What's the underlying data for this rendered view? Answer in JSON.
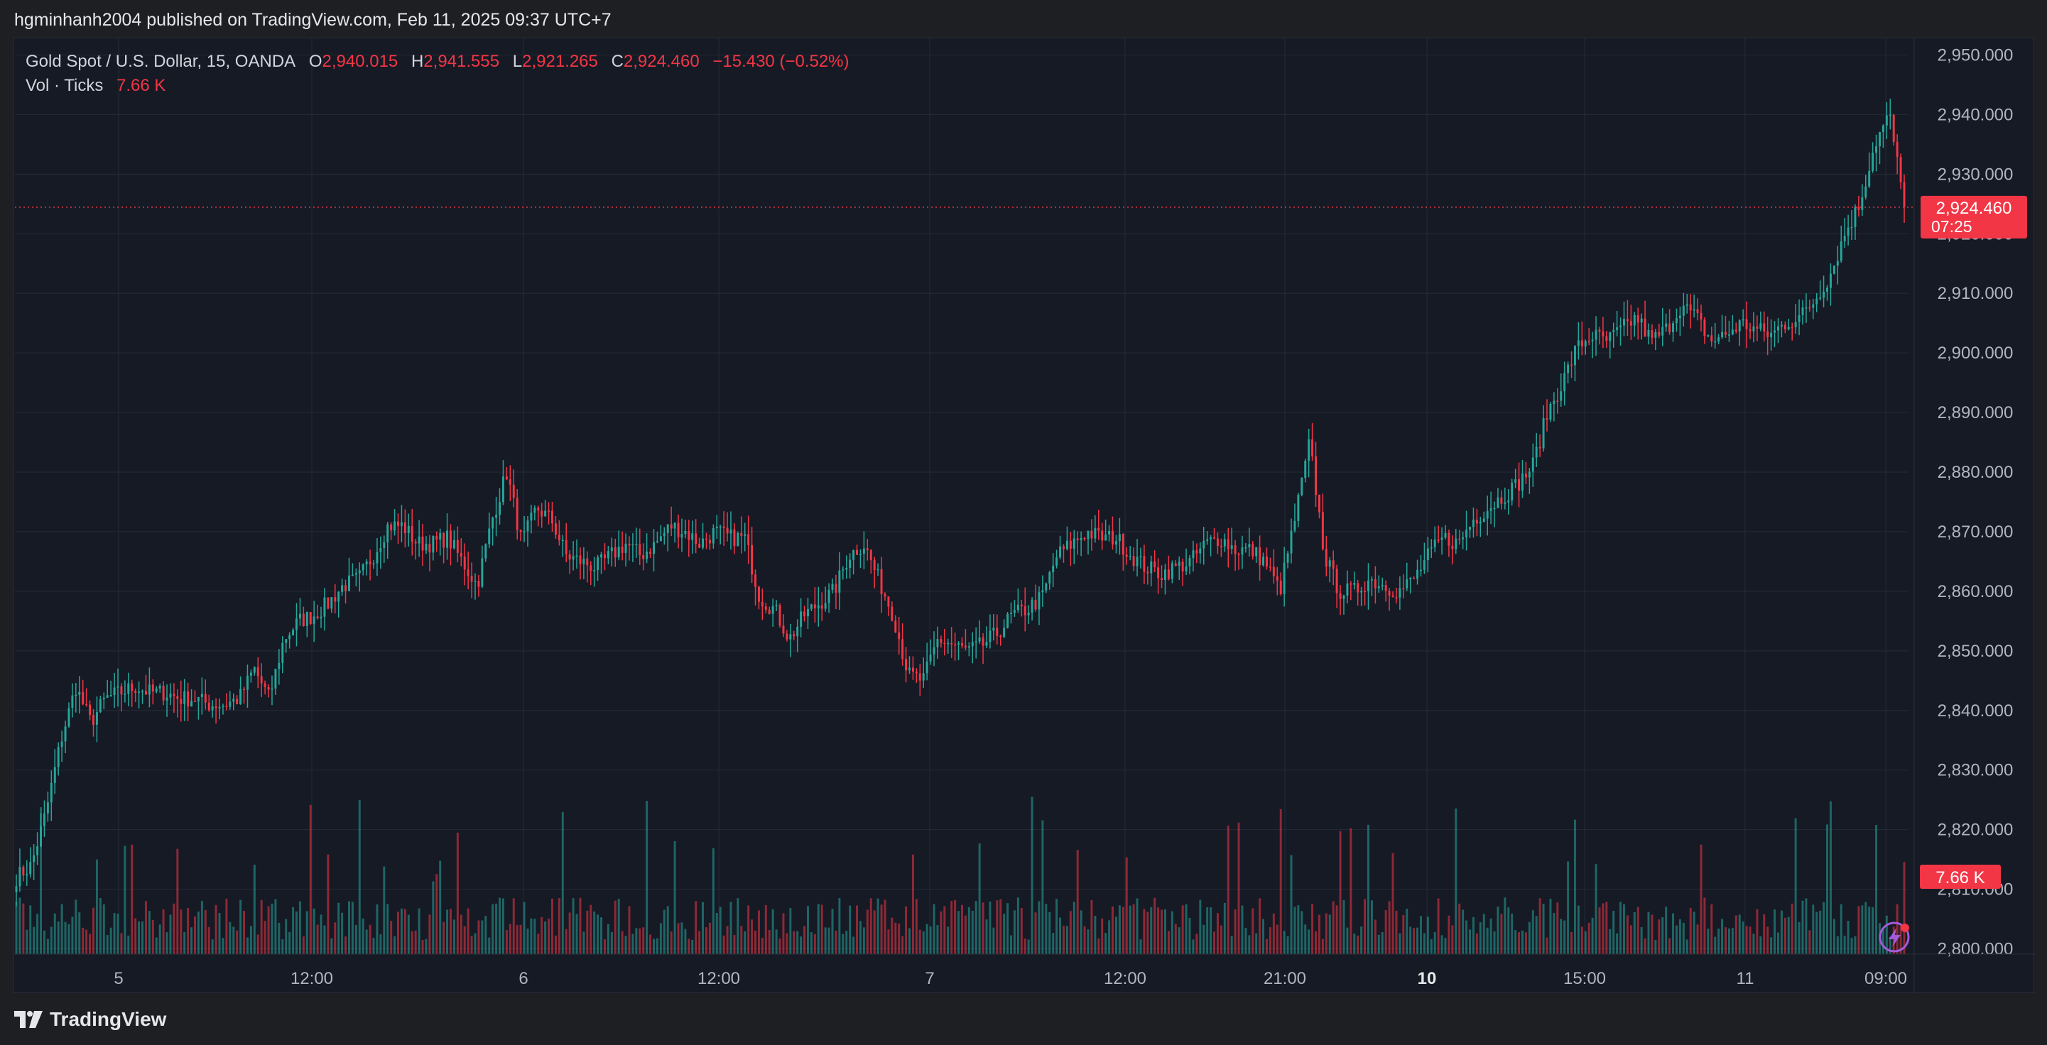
{
  "header": {
    "published_by": "hgminhanh2004 published on TradingView.com, Feb 11, 2025 09:37 UTC+7"
  },
  "legend": {
    "symbol": "Gold Spot / U.S. Dollar, 15, OANDA",
    "o_label": "O",
    "o_value": "2,940.015",
    "h_label": "H",
    "h_value": "2,941.555",
    "l_label": "L",
    "l_value": "2,921.265",
    "c_label": "C",
    "c_value": "2,924.460",
    "change": "−15.430 (−0.52%)",
    "volume_label": "Vol · Ticks",
    "volume_value": "7.66 K"
  },
  "price_badge": {
    "price": "2,924.460",
    "countdown": "07:25"
  },
  "volume_badge": "7.66 K",
  "footer": {
    "brand": "TradingView",
    "logo_icon": "tradingview-logo-icon"
  },
  "colors": {
    "up": "#26a69a",
    "down": "#f23645",
    "background": "#161a25",
    "grid": "#252a36"
  },
  "chart_data": {
    "type": "candlestick",
    "symbol": "Gold Spot / U.S. Dollar",
    "interval": "15",
    "y_axis_ticks": [
      "2,800.000",
      "2,810.000",
      "2,820.000",
      "2,830.000",
      "2,840.000",
      "2,850.000",
      "2,860.000",
      "2,870.000",
      "2,880.000",
      "2,890.000",
      "2,900.000",
      "2,910.000",
      "2,920.000",
      "2,930.000",
      "2,940.000",
      "2,950.000"
    ],
    "ylim": [
      2800,
      2950
    ],
    "x_axis_ticks": [
      {
        "label": "5",
        "bold": false
      },
      {
        "label": "12:00",
        "bold": false
      },
      {
        "label": "6",
        "bold": false
      },
      {
        "label": "12:00",
        "bold": false
      },
      {
        "label": "7",
        "bold": false
      },
      {
        "label": "12:00",
        "bold": false
      },
      {
        "label": "21:00",
        "bold": false
      },
      {
        "label": "10",
        "bold": true
      },
      {
        "label": "15:00",
        "bold": false
      },
      {
        "label": "11",
        "bold": false
      },
      {
        "label": "09:00",
        "bold": false
      }
    ],
    "last_price": 2924.46,
    "close_path_approx": [
      2812,
      2814,
      2823,
      2835,
      2844,
      2838,
      2842,
      2843,
      2844,
      2843,
      2843,
      2842,
      2842,
      2841,
      2841,
      2842,
      2847,
      2842,
      2852,
      2855,
      2856,
      2858,
      2861,
      2862,
      2866,
      2871,
      2871,
      2868,
      2868,
      2869,
      2865,
      2861,
      2872,
      2880,
      2868,
      2874,
      2872,
      2866,
      2865,
      2864,
      2866,
      2868,
      2866,
      2868,
      2871,
      2870,
      2868,
      2870,
      2869,
      2869,
      2859,
      2857,
      2852,
      2856,
      2858,
      2860,
      2866,
      2868,
      2862,
      2856,
      2846,
      2845,
      2852,
      2851,
      2850,
      2851,
      2853,
      2856,
      2857,
      2859,
      2866,
      2868,
      2870,
      2869,
      2869,
      2866,
      2864,
      2863,
      2864,
      2865,
      2868,
      2869,
      2867,
      2867,
      2865,
      2860,
      2872,
      2885,
      2866,
      2860,
      2860,
      2862,
      2861,
      2860,
      2862,
      2866,
      2869,
      2868,
      2872,
      2874,
      2876,
      2878,
      2881,
      2890,
      2895,
      2901,
      2903,
      2902,
      2904,
      2906,
      2902,
      2904,
      2908,
      2906,
      2902,
      2903,
      2905,
      2904,
      2903,
      2905,
      2906,
      2909,
      2913,
      2920,
      2925,
      2935,
      2940,
      2924.46
    ],
    "volume_unit": "Ticks",
    "last_volume": "7.66 K"
  }
}
